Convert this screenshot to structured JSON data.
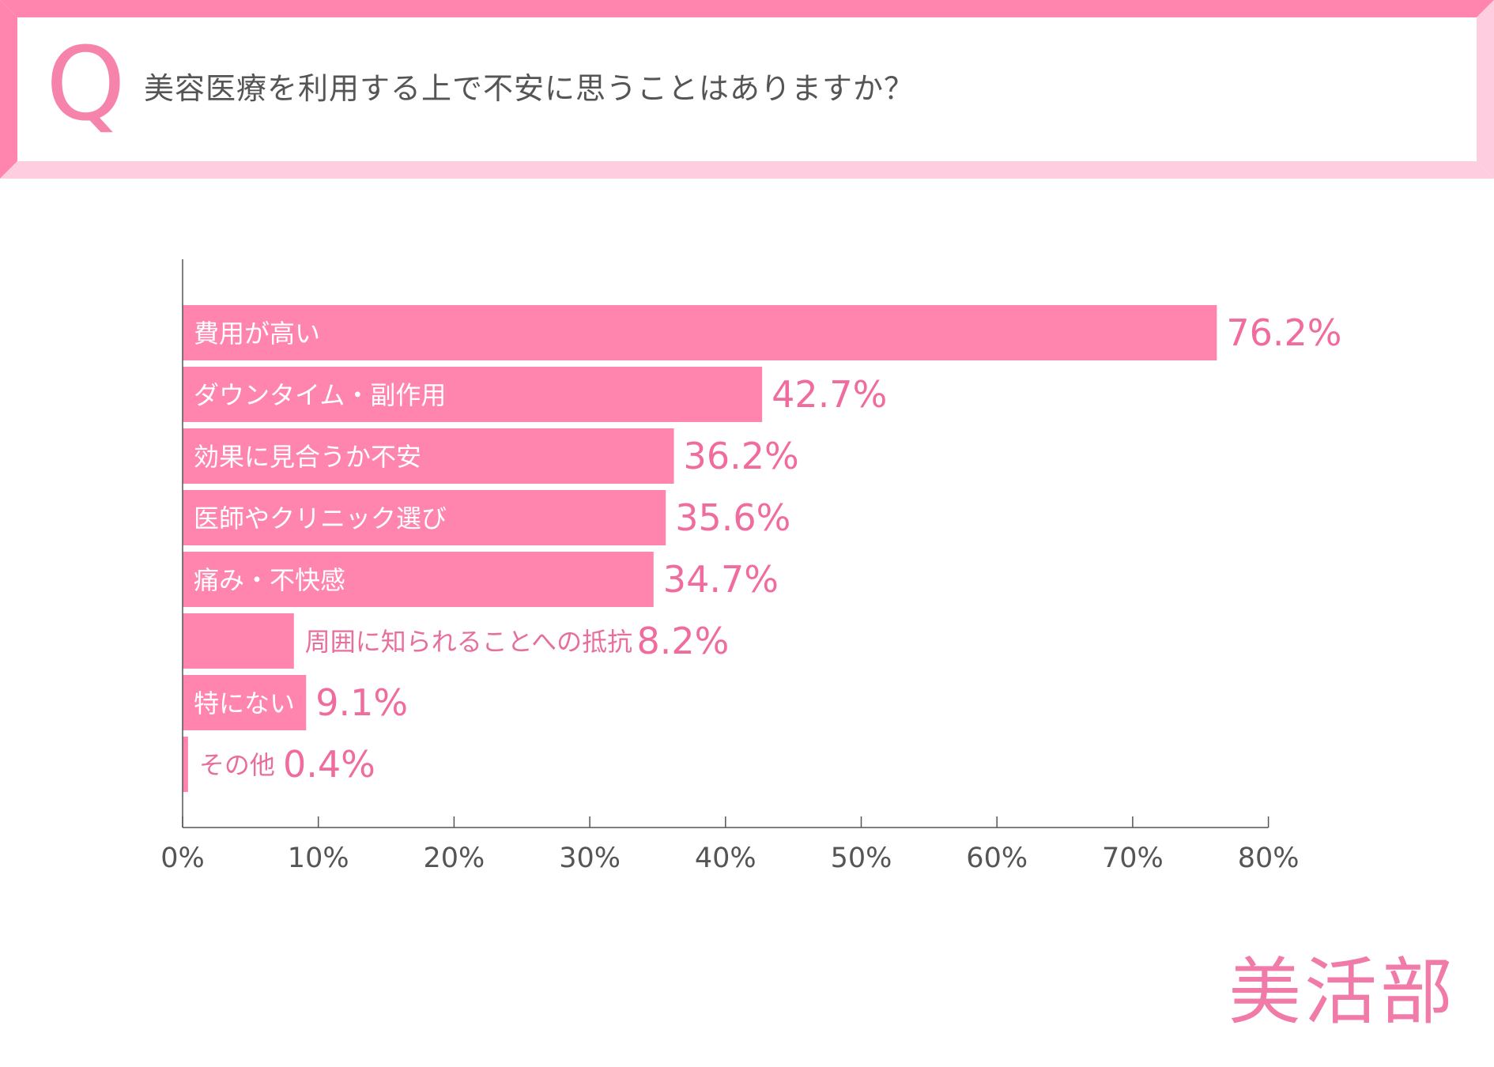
{
  "header": {
    "q_letter": "Q",
    "question": "美容医療を利用する上で不安に思うことはありますか？"
  },
  "brand": {
    "name": "美活部"
  },
  "colors": {
    "bar": "#ff85ae",
    "frame_dark": "#ff85ae",
    "frame_light": "#ffcde0",
    "accent_text": "#f06c9f"
  },
  "chart_data": {
    "type": "bar",
    "orientation": "horizontal",
    "title": "",
    "xlabel": "",
    "ylabel": "",
    "xlim": [
      0,
      80
    ],
    "xticks": [
      0,
      10,
      20,
      30,
      40,
      50,
      60,
      70,
      80
    ],
    "tick_suffix": "%",
    "grid": false,
    "categories": [
      "費用が高い",
      "ダウンタイム・副作用",
      "効果に見合うか不安",
      "医師やクリニック選び",
      "痛み・不快感",
      "周囲に知られることへの抵抗",
      "特にない",
      "その他"
    ],
    "values": [
      76.2,
      42.7,
      36.2,
      35.6,
      34.7,
      8.2,
      9.1,
      0.4
    ],
    "value_labels": [
      "76.2%",
      "42.7%",
      "36.2%",
      "35.6%",
      "34.7%",
      "8.2%",
      "9.1%",
      "0.4%"
    ]
  }
}
